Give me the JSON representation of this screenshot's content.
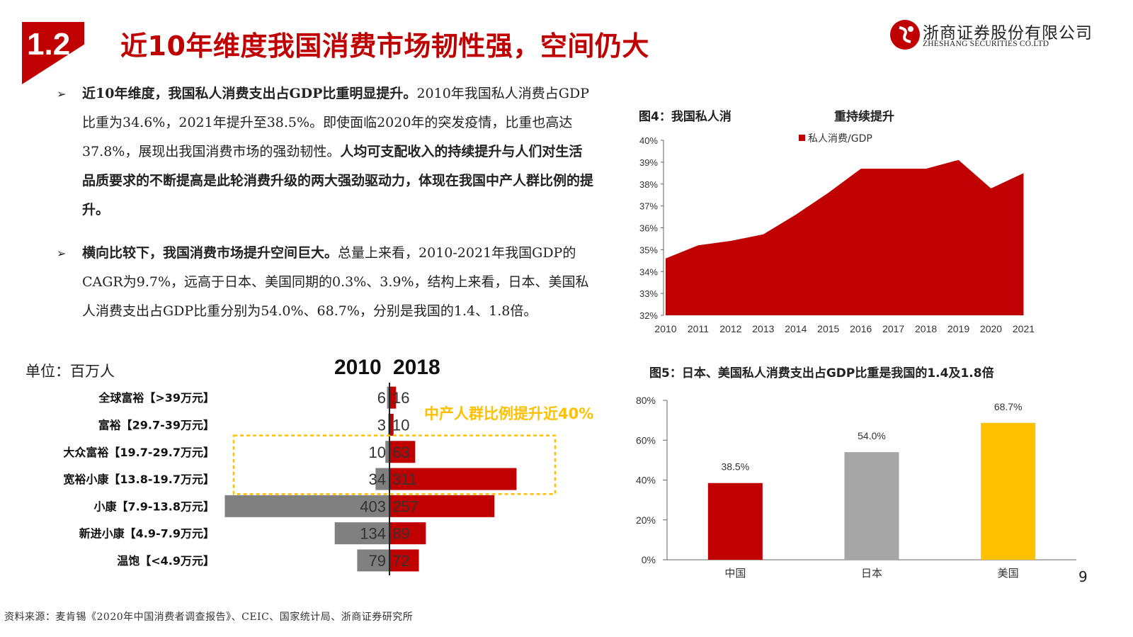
{
  "header": {
    "section_number": "1.2",
    "title": "近10年维度我国消费市场韧性强，空间仍大",
    "company_cn": "浙商证券股份有限公司",
    "company_en": "ZHESHANG SECURITIES CO.LTD"
  },
  "bullets": [
    {
      "bold": "近10年维度，我国私人消费支出占GDP比重明显提升。",
      "text": "2010年我国私人消费占GDP比重为34.6%，2021年提升至38.5%。即使面临2020年的突发疫情，比重也高达37.8%，展现出我国消费市场的强劲韧性。",
      "bold2": "人均可支配收入的持续提升与人们对生活品质要求的不断提高是此轮消费升级的两大强劲驱动力，体现在我国中产人群比例的提升。"
    },
    {
      "bold": "横向比较下，我国消费市场提升空间巨大。",
      "text": "总量上来看，2010-2021年我国GDP的CAGR为9.7%，远高于日本、美国同期的0.3%、3.9%，结构上来看，日本、美国私人消费支出占GDP比重分别为54.0%、68.7%，分别是我国的1.4、1.8倍。",
      "bold2": ""
    }
  ],
  "population": {
    "unit": "单位：百万人",
    "year_left": "2010",
    "year_right": "2018",
    "note": "中产人群比例提升近40%",
    "color_2010": "#808080",
    "color_2018": "#c00000",
    "highlight_color": "#ffc000"
  },
  "fig4": {
    "title": "图4：我国私人消",
    "title_part2": "重持续提升"
  },
  "fig5": {
    "title": "图5：日本、美国私人消费支出占GDP比重是我国的1.4及1.8倍"
  },
  "chart_data": [
    {
      "type": "bar",
      "categories": [
        "全球富裕【>39万元】",
        "富裕【29.7-39万元】",
        "大众富裕【19.7-29.7万元】",
        "宽裕小康【13.8-19.7万元】",
        "小康【7.9-13.8万元】",
        "新进小康【4.9-7.9万元】",
        "温饱【<4.9万元】"
      ],
      "series": [
        {
          "name": "2010",
          "values": [
            6,
            3,
            10,
            34,
            403,
            134,
            79
          ]
        },
        {
          "name": "2018",
          "values": [
            16,
            10,
            63,
            311,
            257,
            89,
            72
          ]
        }
      ],
      "highlighted_categories": [
        "大众富裕【19.7-29.7万元】",
        "宽裕小康【13.8-19.7万元】"
      ]
    },
    {
      "type": "area",
      "title": "图4：我国私人消重持续提升",
      "x": [
        "2010",
        "2011",
        "2012",
        "2013",
        "2014",
        "2015",
        "2016",
        "2017",
        "2018",
        "2019",
        "2020",
        "2021"
      ],
      "series": [
        {
          "name": "私人消费/GDP",
          "values": [
            34.6,
            35.2,
            35.4,
            35.7,
            36.6,
            37.6,
            38.7,
            38.7,
            38.7,
            39.1,
            37.8,
            38.5
          ]
        }
      ],
      "ylim": [
        32,
        40
      ],
      "yticks": [
        "32%",
        "33%",
        "34%",
        "35%",
        "36%",
        "37%",
        "38%",
        "39%",
        "40%"
      ],
      "color": "#c00000",
      "legend": "top"
    },
    {
      "type": "bar",
      "title": "图5：日本、美国私人消费支出占GDP比重是我国的1.4及1.8倍",
      "categories": [
        "中国",
        "日本",
        "美国"
      ],
      "values": [
        38.5,
        54.0,
        68.7
      ],
      "value_labels": [
        "38.5%",
        "54.0%",
        "68.7%"
      ],
      "colors": [
        "#c00000",
        "#a6a6a6",
        "#ffc000"
      ],
      "ylim": [
        0,
        80
      ],
      "yticks": [
        "0%",
        "20%",
        "40%",
        "60%",
        "80%"
      ]
    }
  ],
  "page_number": "9",
  "source": "资料来源：麦肯锡《2020年中国消费者调查报告》、CEIC、国家统计局、浙商证券研究所"
}
